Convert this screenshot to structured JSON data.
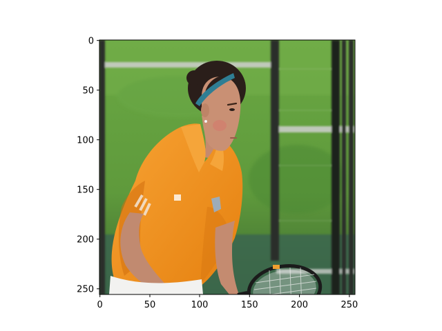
{
  "figure": {
    "description_type": "image-plot",
    "background": "#ffffff"
  },
  "axes": {
    "x_ticks": [
      "0",
      "50",
      "100",
      "150",
      "200",
      "250"
    ],
    "y_ticks": [
      "0",
      "50",
      "100",
      "150",
      "200",
      "250"
    ],
    "x_range": [
      0,
      256
    ],
    "y_range": [
      256,
      0
    ]
  },
  "scene": {
    "colors": {
      "grass": "#5f9a3c",
      "grass_dark": "#3f6f2a",
      "shirt": "#f08f1c",
      "shirt_shadow": "#d2700f",
      "skin": "#c98e73",
      "hair": "#2a1e1a",
      "headband": "#2f7e94",
      "fence_post": "#2b2f2a",
      "fence_rail": "#c9ccc8",
      "court": "#2f5e58"
    },
    "icons": [
      "tennis-player-photo"
    ]
  }
}
